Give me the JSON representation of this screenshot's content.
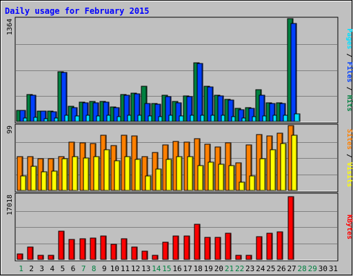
{
  "colors": {
    "background": "#c0c0c0",
    "panel": "#c0c0c0",
    "title": "#0000ff",
    "grid": "#808080",
    "hits": "#008040",
    "files": "#0040ff",
    "pages": "#00e0ff",
    "visits": "#ff8000",
    "sites": "#ffff00",
    "kbytes": "#ff0000",
    "weekday": "#000000",
    "weekend": "#008040"
  },
  "chart_data": {
    "type": "bar",
    "title": "Daily usage for February 2015",
    "days": [
      "1",
      "2",
      "3",
      "4",
      "5",
      "6",
      "7",
      "8",
      "9",
      "10",
      "11",
      "12",
      "13",
      "14",
      "15",
      "16",
      "17",
      "18",
      "19",
      "20",
      "21",
      "22",
      "23",
      "24",
      "25",
      "26",
      "27",
      "28",
      "29",
      "30",
      "31"
    ],
    "weekend_days": [
      "1",
      "7",
      "8",
      "14",
      "15",
      "21",
      "22",
      "28",
      "29"
    ],
    "panels": [
      {
        "name": "hits-files-pages",
        "ylabel_parts": [
          {
            "text": "Pages",
            "color_key": "pages"
          },
          {
            "text": " / ",
            "color_key": "weekday"
          },
          {
            "text": "Files",
            "color_key": "files"
          },
          {
            "text": " / ",
            "color_key": "weekday"
          },
          {
            "text": "Hits",
            "color_key": "hits"
          }
        ],
        "max_label": "1364",
        "ymax": 1364,
        "series": [
          {
            "color_key": "hits",
            "values": [
              150,
              360,
              140,
              135,
              660,
              200,
              260,
              265,
              265,
              195,
              360,
              375,
              470,
              235,
              345,
              270,
              340,
              780,
              470,
              350,
              290,
              170,
              185,
              420,
              250,
              250,
              1364,
              0,
              0,
              0,
              0
            ]
          },
          {
            "color_key": "files",
            "values": [
              145,
              350,
              135,
              130,
              650,
              185,
              250,
              250,
              255,
              185,
              350,
              365,
              240,
              225,
              330,
              250,
              325,
              770,
              455,
              340,
              280,
              160,
              175,
              350,
              240,
              240,
              1300,
              0,
              0,
              0,
              0
            ]
          },
          {
            "color_key": "pages",
            "values": [
              45,
              55,
              40,
              45,
              85,
              70,
              80,
              75,
              80,
              60,
              80,
              85,
              75,
              65,
              80,
              75,
              80,
              85,
              80,
              80,
              60,
              50,
              60,
              75,
              80,
              80,
              100,
              0,
              0,
              0,
              0
            ]
          }
        ],
        "stacked_extra": [
          0,
          0,
          0,
          0,
          0,
          0,
          0,
          0,
          0,
          0,
          0,
          0,
          0,
          0,
          0,
          0,
          0,
          0,
          0,
          0,
          0,
          0,
          0,
          0,
          0,
          0,
          0,
          0,
          0,
          0,
          0
        ]
      },
      {
        "name": "visits-sites",
        "ylabel_parts": [
          {
            "text": "Sites",
            "color_key": "visits"
          },
          {
            "text": " / ",
            "color_key": "weekday"
          },
          {
            "text": "Visits",
            "color_key": "sites"
          }
        ],
        "max_label": "99",
        "ymax": 99,
        "series": [
          {
            "color_key": "visits",
            "values": [
              52,
              52,
              48,
              48,
              52,
              74,
              73,
              72,
              84,
              68,
              84,
              83,
              52,
              58,
              69,
              75,
              74,
              79,
              71,
              66,
              73,
              42,
              69,
              85,
              83,
              87,
              99,
              0,
              0,
              0,
              0
            ]
          },
          {
            "color_key": "sites",
            "values": [
              22,
              37,
              28,
              30,
              48,
              52,
              49,
              52,
              62,
              45,
              52,
              47,
              22,
              33,
              47,
              52,
              52,
              38,
              43,
              40,
              38,
              13,
              22,
              48,
              62,
              72,
              84,
              0,
              0,
              0,
              0
            ]
          }
        ]
      },
      {
        "name": "kbytes",
        "ylabel_parts": [
          {
            "text": "KBytes",
            "color_key": "kbytes"
          }
        ],
        "max_label": "17018",
        "ymax": 17018,
        "series": [
          {
            "color_key": "kbytes",
            "values": [
              1500,
              3200,
              1100,
              1100,
              7500,
              5200,
              5500,
              5700,
              6200,
              4000,
              5500,
              3200,
              2200,
              1100,
              4500,
              6200,
              6200,
              9300,
              5800,
              5800,
              6800,
              1100,
              1100,
              6000,
              6800,
              7200,
              16500,
              0,
              0,
              0,
              0
            ]
          },
          {
            "color_key": "kbytes",
            "values": [
              0,
              0,
              0,
              0,
              0,
              0,
              0,
              0,
              0,
              0,
              0,
              0,
              0,
              0,
              0,
              0,
              0,
              0,
              0,
              0,
              0,
              0,
              0,
              0,
              0,
              0,
              0,
              0,
              0,
              0,
              0
            ]
          }
        ]
      }
    ]
  }
}
